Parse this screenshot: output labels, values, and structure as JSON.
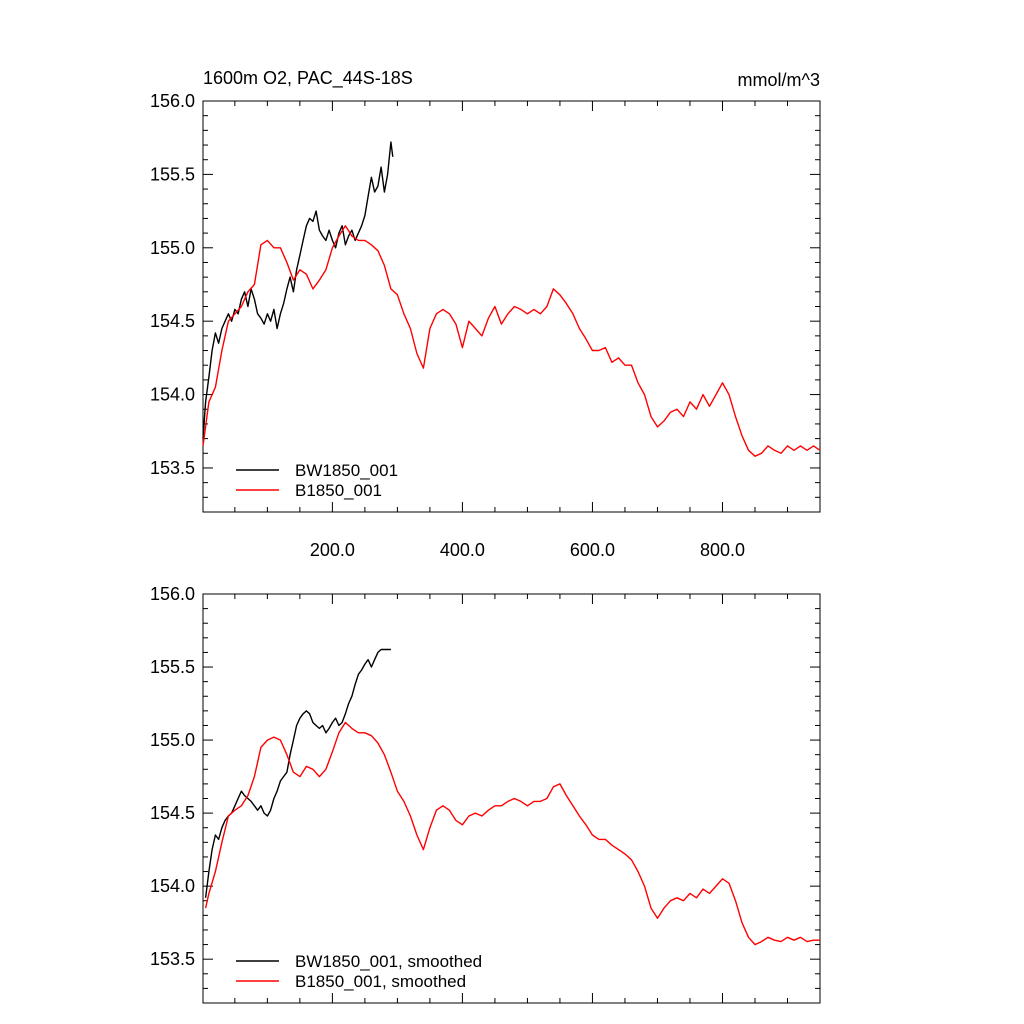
{
  "figure": {
    "title_left": "1600m O2, PAC_44S-18S",
    "title_right": "mmol/m^3"
  },
  "colors": {
    "bw1850": "#000000",
    "b1850": "#ff0000",
    "frame": "#000000",
    "background": "#ffffff"
  },
  "chart_data": [
    {
      "type": "line",
      "title": "1600m O2, PAC_44S-18S",
      "units": "mmol/m^3",
      "xlim": [
        1,
        950
      ],
      "ylim": [
        153.2,
        156.0
      ],
      "x_ticks": [
        200,
        400,
        600,
        800
      ],
      "x_tick_labels": [
        "200.0",
        "400.0",
        "600.0",
        "800.0"
      ],
      "y_ticks": [
        153.5,
        154.0,
        154.5,
        155.0,
        155.5,
        156.0
      ],
      "y_tick_labels": [
        "153.5",
        "154.0",
        "154.5",
        "155.0",
        "155.5",
        "156.0"
      ],
      "legend_position": "bottom-left",
      "grid": false,
      "series": [
        {
          "name": "BW1850_001",
          "color": "#000000",
          "x": [
            1,
            5,
            10,
            15,
            20,
            25,
            30,
            35,
            40,
            45,
            50,
            55,
            60,
            65,
            70,
            75,
            80,
            85,
            90,
            95,
            100,
            105,
            110,
            115,
            120,
            125,
            130,
            135,
            140,
            145,
            150,
            155,
            160,
            165,
            170,
            175,
            180,
            185,
            190,
            195,
            200,
            205,
            210,
            215,
            220,
            225,
            230,
            235,
            240,
            245,
            250,
            255,
            260,
            265,
            270,
            275,
            280,
            285,
            290,
            293
          ],
          "y": [
            153.7,
            153.95,
            154.12,
            154.3,
            154.42,
            154.35,
            154.45,
            154.5,
            154.55,
            154.5,
            154.58,
            154.55,
            154.65,
            154.7,
            154.6,
            154.72,
            154.65,
            154.55,
            154.52,
            154.48,
            154.55,
            154.5,
            154.58,
            154.45,
            154.55,
            154.62,
            154.72,
            154.8,
            154.7,
            154.85,
            154.95,
            155.05,
            155.15,
            155.2,
            155.18,
            155.25,
            155.12,
            155.08,
            155.05,
            155.12,
            155.05,
            155.0,
            155.1,
            155.15,
            155.02,
            155.08,
            155.12,
            155.05,
            155.1,
            155.15,
            155.22,
            155.35,
            155.48,
            155.38,
            155.42,
            155.55,
            155.38,
            155.5,
            155.72,
            155.62
          ]
        },
        {
          "name": "B1850_001",
          "color": "#ff0000",
          "x": [
            1,
            10,
            20,
            30,
            40,
            50,
            60,
            70,
            80,
            90,
            100,
            110,
            120,
            130,
            140,
            150,
            160,
            170,
            180,
            190,
            200,
            210,
            220,
            230,
            240,
            250,
            260,
            270,
            280,
            290,
            300,
            310,
            320,
            330,
            340,
            350,
            360,
            370,
            380,
            390,
            400,
            410,
            420,
            430,
            440,
            450,
            460,
            470,
            480,
            490,
            500,
            510,
            520,
            530,
            540,
            550,
            560,
            570,
            580,
            590,
            600,
            610,
            620,
            630,
            640,
            650,
            660,
            670,
            680,
            690,
            700,
            710,
            720,
            730,
            740,
            750,
            760,
            770,
            780,
            790,
            800,
            810,
            820,
            830,
            840,
            850,
            860,
            870,
            880,
            890,
            900,
            910,
            920,
            930,
            940,
            950
          ],
          "y": [
            153.65,
            153.95,
            154.05,
            154.3,
            154.5,
            154.55,
            154.6,
            154.7,
            154.75,
            155.02,
            155.05,
            155.0,
            155.0,
            154.9,
            154.78,
            154.85,
            154.82,
            154.72,
            154.78,
            154.85,
            155.0,
            155.08,
            155.15,
            155.08,
            155.05,
            155.05,
            155.02,
            154.98,
            154.88,
            154.72,
            154.68,
            154.55,
            154.45,
            154.28,
            154.18,
            154.45,
            154.55,
            154.58,
            154.55,
            154.48,
            154.32,
            154.5,
            154.45,
            154.4,
            154.52,
            154.6,
            154.48,
            154.55,
            154.6,
            154.58,
            154.55,
            154.58,
            154.55,
            154.6,
            154.72,
            154.68,
            154.62,
            154.55,
            154.45,
            154.38,
            154.3,
            154.3,
            154.32,
            154.22,
            154.25,
            154.2,
            154.2,
            154.08,
            154.0,
            153.85,
            153.78,
            153.82,
            153.88,
            153.9,
            153.85,
            153.95,
            153.9,
            154.0,
            153.92,
            154.0,
            154.08,
            154.0,
            153.85,
            153.72,
            153.62,
            153.58,
            153.6,
            153.65,
            153.62,
            153.6,
            153.65,
            153.62,
            153.65,
            153.62,
            153.65,
            153.62
          ]
        }
      ]
    },
    {
      "type": "line",
      "xlim": [
        1,
        950
      ],
      "ylim": [
        153.2,
        156.0
      ],
      "x_ticks": [
        200,
        400,
        600,
        800
      ],
      "y_ticks": [
        153.5,
        154.0,
        154.5,
        155.0,
        155.5,
        156.0
      ],
      "y_tick_labels": [
        "153.5",
        "154.0",
        "154.5",
        "155.0",
        "155.5",
        "156.0"
      ],
      "legend_position": "bottom-left",
      "grid": false,
      "series": [
        {
          "name": "BW1850_001, smoothed",
          "color": "#000000",
          "x": [
            5,
            10,
            15,
            20,
            25,
            30,
            35,
            40,
            45,
            50,
            55,
            60,
            65,
            70,
            75,
            80,
            85,
            90,
            95,
            100,
            105,
            110,
            115,
            120,
            125,
            130,
            135,
            140,
            145,
            150,
            155,
            160,
            165,
            170,
            175,
            180,
            185,
            190,
            195,
            200,
            205,
            210,
            215,
            220,
            225,
            230,
            235,
            240,
            245,
            250,
            255,
            260,
            265,
            270,
            275,
            280,
            285,
            290
          ],
          "y": [
            153.92,
            154.1,
            154.25,
            154.35,
            154.32,
            154.4,
            154.45,
            154.48,
            154.5,
            154.55,
            154.6,
            154.65,
            154.62,
            154.6,
            154.58,
            154.55,
            154.52,
            154.55,
            154.5,
            154.48,
            154.52,
            154.6,
            154.65,
            154.72,
            154.75,
            154.78,
            154.9,
            155.0,
            155.1,
            155.15,
            155.18,
            155.2,
            155.18,
            155.12,
            155.1,
            155.08,
            155.1,
            155.05,
            155.08,
            155.12,
            155.15,
            155.1,
            155.12,
            155.18,
            155.25,
            155.3,
            155.38,
            155.45,
            155.48,
            155.52,
            155.55,
            155.5,
            155.55,
            155.6,
            155.62,
            155.62,
            155.62,
            155.62
          ]
        },
        {
          "name": "B1850_001, smoothed",
          "color": "#ff0000",
          "x": [
            5,
            10,
            20,
            30,
            40,
            50,
            60,
            70,
            80,
            90,
            100,
            110,
            120,
            130,
            140,
            150,
            160,
            170,
            180,
            190,
            200,
            210,
            220,
            230,
            240,
            250,
            260,
            270,
            280,
            290,
            300,
            310,
            320,
            330,
            340,
            350,
            360,
            370,
            380,
            390,
            400,
            410,
            420,
            430,
            440,
            450,
            460,
            470,
            480,
            490,
            500,
            510,
            520,
            530,
            540,
            550,
            560,
            570,
            580,
            590,
            600,
            610,
            620,
            630,
            640,
            650,
            660,
            670,
            680,
            690,
            700,
            710,
            720,
            730,
            740,
            750,
            760,
            770,
            780,
            790,
            800,
            810,
            820,
            830,
            840,
            850,
            860,
            870,
            880,
            890,
            900,
            910,
            920,
            930,
            940,
            950
          ],
          "y": [
            153.85,
            153.95,
            154.1,
            154.3,
            154.48,
            154.52,
            154.55,
            154.62,
            154.75,
            154.95,
            155.0,
            155.02,
            155.0,
            154.9,
            154.78,
            154.75,
            154.82,
            154.8,
            154.75,
            154.8,
            154.92,
            155.05,
            155.12,
            155.08,
            155.05,
            155.05,
            155.03,
            154.98,
            154.9,
            154.78,
            154.65,
            154.58,
            154.48,
            154.35,
            154.25,
            154.4,
            154.52,
            154.55,
            154.52,
            154.45,
            154.42,
            154.48,
            154.5,
            154.48,
            154.52,
            154.55,
            154.55,
            154.58,
            154.6,
            154.58,
            154.55,
            154.58,
            154.58,
            154.6,
            154.68,
            154.7,
            154.62,
            154.55,
            154.48,
            154.42,
            154.35,
            154.32,
            154.32,
            154.28,
            154.25,
            154.22,
            154.18,
            154.1,
            154.0,
            153.85,
            153.78,
            153.85,
            153.9,
            153.92,
            153.9,
            153.95,
            153.92,
            153.98,
            153.95,
            154.0,
            154.05,
            154.02,
            153.9,
            153.75,
            153.65,
            153.6,
            153.62,
            153.65,
            153.63,
            153.62,
            153.65,
            153.63,
            153.65,
            153.62,
            153.63,
            153.63
          ]
        }
      ]
    }
  ]
}
